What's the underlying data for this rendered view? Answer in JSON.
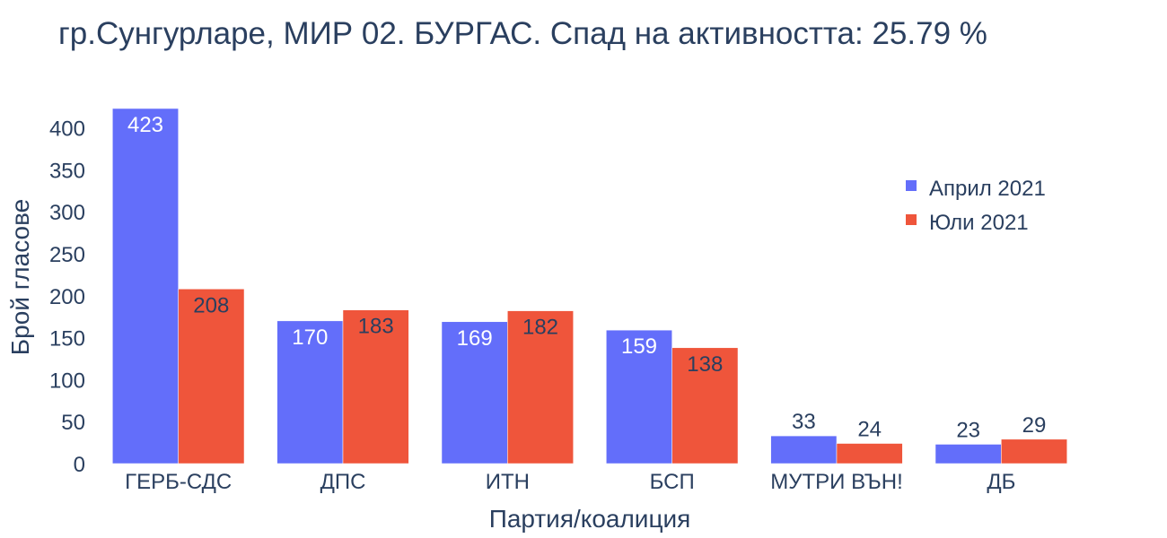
{
  "chart_data": {
    "type": "bar",
    "title": "гр.Сунгурларе, МИР 02. БУРГАС. Спад на активността: 25.79 %",
    "xlabel": "Партия/коалиция",
    "ylabel": "Брой гласове",
    "ylim": [
      0,
      423
    ],
    "yticks": [
      0,
      50,
      100,
      150,
      200,
      250,
      300,
      350,
      400
    ],
    "grid": false,
    "legend_position": "top-right",
    "categories": [
      "ГЕРБ-СДС",
      "ДПС",
      "ИТН",
      "БСП",
      "МУТРИ ВЪН!",
      "ДБ"
    ],
    "series": [
      {
        "name": "Април 2021",
        "color": "#636efa",
        "values": [
          423,
          170,
          169,
          159,
          33,
          23
        ],
        "labels": [
          "423",
          "170",
          "169",
          "159",
          "33",
          "23"
        ]
      },
      {
        "name": "Юли 2021",
        "color": "#ef553b",
        "values": [
          208,
          183,
          182,
          138,
          24,
          29
        ],
        "labels": [
          "208",
          "183",
          "182",
          "138",
          "24",
          "29"
        ]
      }
    ]
  }
}
